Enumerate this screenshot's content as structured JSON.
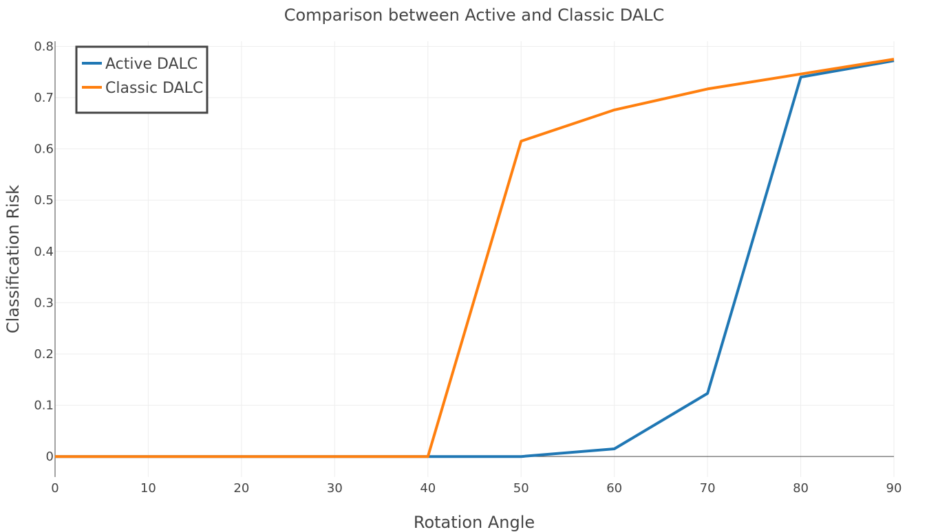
{
  "chart_data": {
    "type": "line",
    "title": "Comparison between Active and Classic DALC",
    "xlabel": "Rotation Angle",
    "ylabel": "Classification Risk",
    "x": [
      0,
      10,
      20,
      30,
      40,
      50,
      60,
      70,
      80,
      90
    ],
    "xlim": [
      0,
      90
    ],
    "ylim": [
      -0.04,
      0.81
    ],
    "xticks": [
      0,
      10,
      20,
      30,
      40,
      50,
      60,
      70,
      80,
      90
    ],
    "xtick_labels": [
      "0",
      "10",
      "20",
      "30",
      "40",
      "50",
      "60",
      "70",
      "80",
      "90"
    ],
    "yticks": [
      0,
      0.1,
      0.2,
      0.3,
      0.4,
      0.5,
      0.6,
      0.7,
      0.8
    ],
    "ytick_labels": [
      "0",
      "0.1",
      "0.2",
      "0.3",
      "0.4",
      "0.5",
      "0.6",
      "0.7",
      "0.8"
    ],
    "grid": true,
    "legend_position": "top-left",
    "series": [
      {
        "name": "Active DALC",
        "color": "#1f77b4",
        "values": [
          0,
          0,
          0,
          0,
          0,
          0,
          0.015,
          0.123,
          0.74,
          0.772
        ]
      },
      {
        "name": "Classic DALC",
        "color": "#ff7f0e",
        "values": [
          0,
          0,
          0,
          0,
          0,
          0.615,
          0.676,
          0.717,
          0.746,
          0.775
        ]
      }
    ]
  }
}
